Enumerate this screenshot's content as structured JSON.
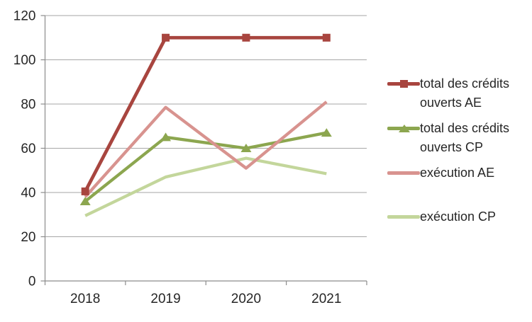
{
  "chart_data": {
    "type": "line",
    "categories": [
      "2018",
      "2019",
      "2020",
      "2021"
    ],
    "series": [
      {
        "name": "total des crédits ouverts AE",
        "values": [
          40.5,
          110,
          110,
          110
        ],
        "color": "#A8453F",
        "marker": "square",
        "width": 4.8,
        "z": 4
      },
      {
        "name": "total des crédits ouverts CP",
        "values": [
          36,
          65,
          60,
          67
        ],
        "color": "#8CA64F",
        "marker": "triangle",
        "width": 4.3,
        "z": 2
      },
      {
        "name": "exécution AE",
        "values": [
          38,
          78.5,
          51,
          81
        ],
        "color": "#D8938F",
        "marker": "none",
        "width": 4.3,
        "z": 3
      },
      {
        "name": "exécution CP",
        "values": [
          29.5,
          47,
          55.5,
          48.5
        ],
        "color": "#C3D69B",
        "marker": "none",
        "width": 4.3,
        "z": 1
      }
    ],
    "title": "",
    "xlabel": "",
    "ylabel": "",
    "ylim": [
      0,
      120
    ],
    "yticks": [
      0,
      20,
      40,
      60,
      80,
      100,
      120
    ],
    "grid": true,
    "legend_position": "right",
    "grid_color": "#A6A6A6",
    "axis_color": "#8C8C8C",
    "text_color": "#262626",
    "background_color": "#FFFFFF"
  }
}
